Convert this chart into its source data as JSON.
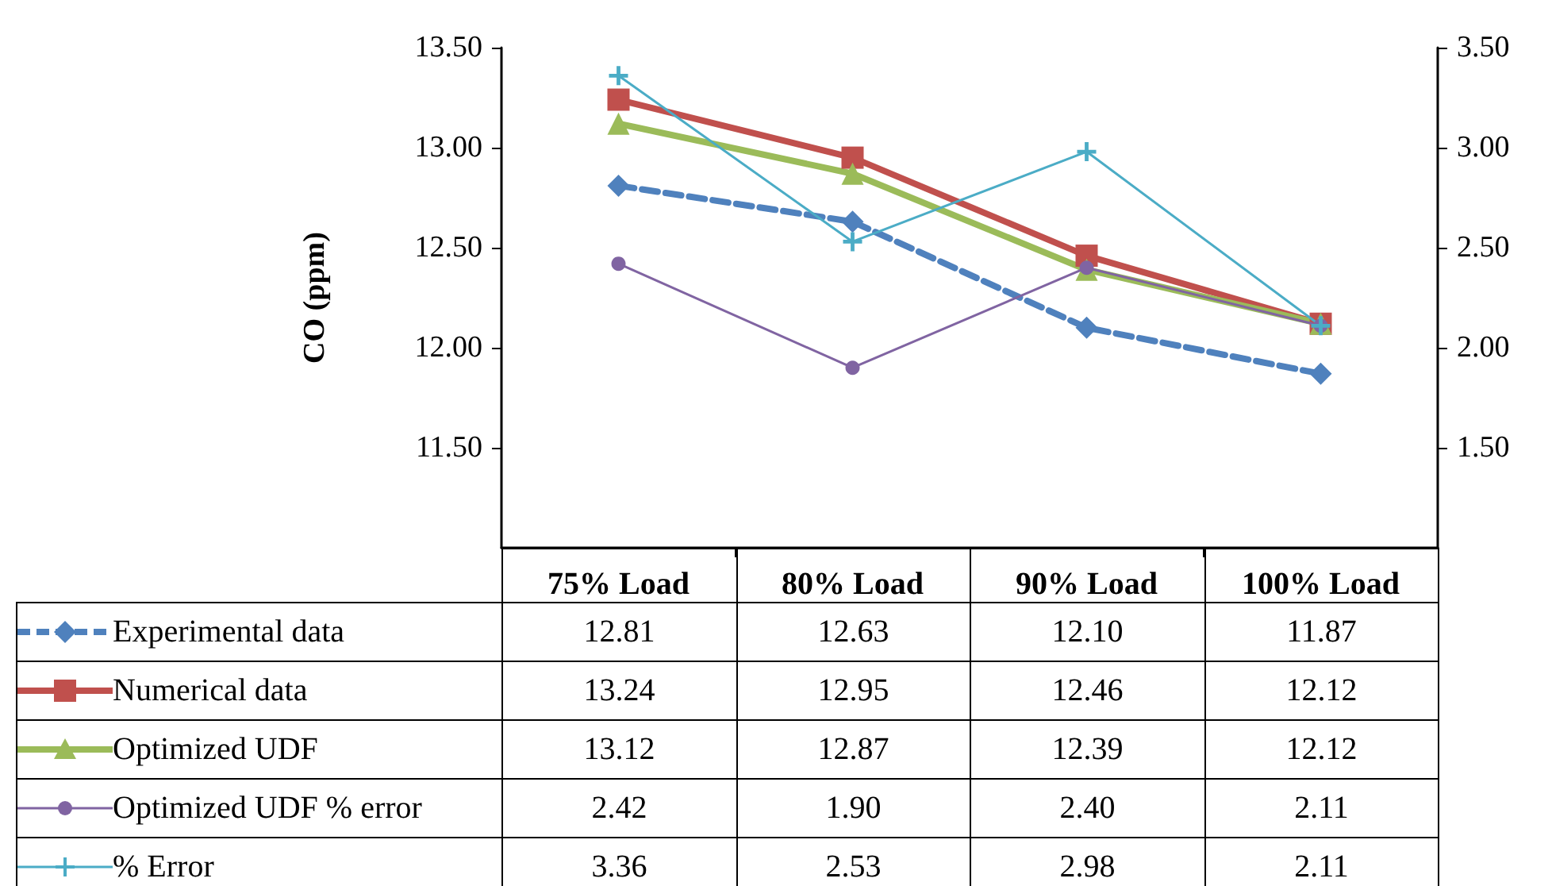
{
  "chart_data": {
    "type": "line",
    "ylabel": "CO (ppm)",
    "categories": [
      "75% Load",
      "80% Load",
      "90% Load",
      "100% Load"
    ],
    "series": [
      {
        "name": "Experimental data",
        "color": "#4f81bd",
        "marker": "diamond",
        "line_style": "dashed",
        "values": [
          12.81,
          12.63,
          12.1,
          11.87
        ],
        "value_labels": [
          "12.81",
          "12.63",
          "12.10",
          "11.87"
        ]
      },
      {
        "name": "Numerical data",
        "color": "#c0504d",
        "marker": "square",
        "line_style": "solid",
        "values": [
          13.24,
          12.95,
          12.46,
          12.12
        ],
        "value_labels": [
          "13.24",
          "12.95",
          "12.46",
          "12.12"
        ]
      },
      {
        "name": "Optimized UDF",
        "color": "#9bbb59",
        "marker": "triangle",
        "line_style": "solid",
        "values": [
          13.12,
          12.87,
          12.39,
          12.12
        ],
        "value_labels": [
          "13.12",
          "12.87",
          "12.39",
          "12.12"
        ]
      },
      {
        "name": "Optimized UDF % error",
        "color": "#8064a2",
        "marker": "circle",
        "line_style": "solid",
        "axis": "y2",
        "values": [
          2.42,
          1.9,
          2.4,
          2.11
        ],
        "value_labels": [
          "2.42",
          "1.90",
          "2.40",
          "2.11"
        ]
      },
      {
        "name": "% Error",
        "color": "#4bacc6",
        "marker": "cross",
        "line_style": "solid",
        "axis": "y2",
        "values": [
          3.36,
          2.53,
          2.98,
          2.11
        ],
        "value_labels": [
          "3.36",
          "2.53",
          "2.98",
          "2.11"
        ]
      }
    ],
    "ylim": [
      11,
      13.5
    ],
    "yticks": [
      {
        "value": 11.5,
        "label": "11.50"
      },
      {
        "value": 12,
        "label": "12.00"
      },
      {
        "value": 12.5,
        "label": "12.50"
      },
      {
        "value": 13,
        "label": "13.00"
      },
      {
        "value": 13.5,
        "label": "13.50"
      }
    ],
    "y2lim": [
      1,
      3.5
    ],
    "y2ticks": [
      {
        "value": 1.5,
        "label": "1.50"
      },
      {
        "value": 2,
        "label": "2.00"
      },
      {
        "value": 2.5,
        "label": "2.50"
      },
      {
        "value": 3,
        "label": "3.00"
      },
      {
        "value": 3.5,
        "label": "3.50"
      }
    ],
    "grid": false,
    "legend": "bottom"
  }
}
